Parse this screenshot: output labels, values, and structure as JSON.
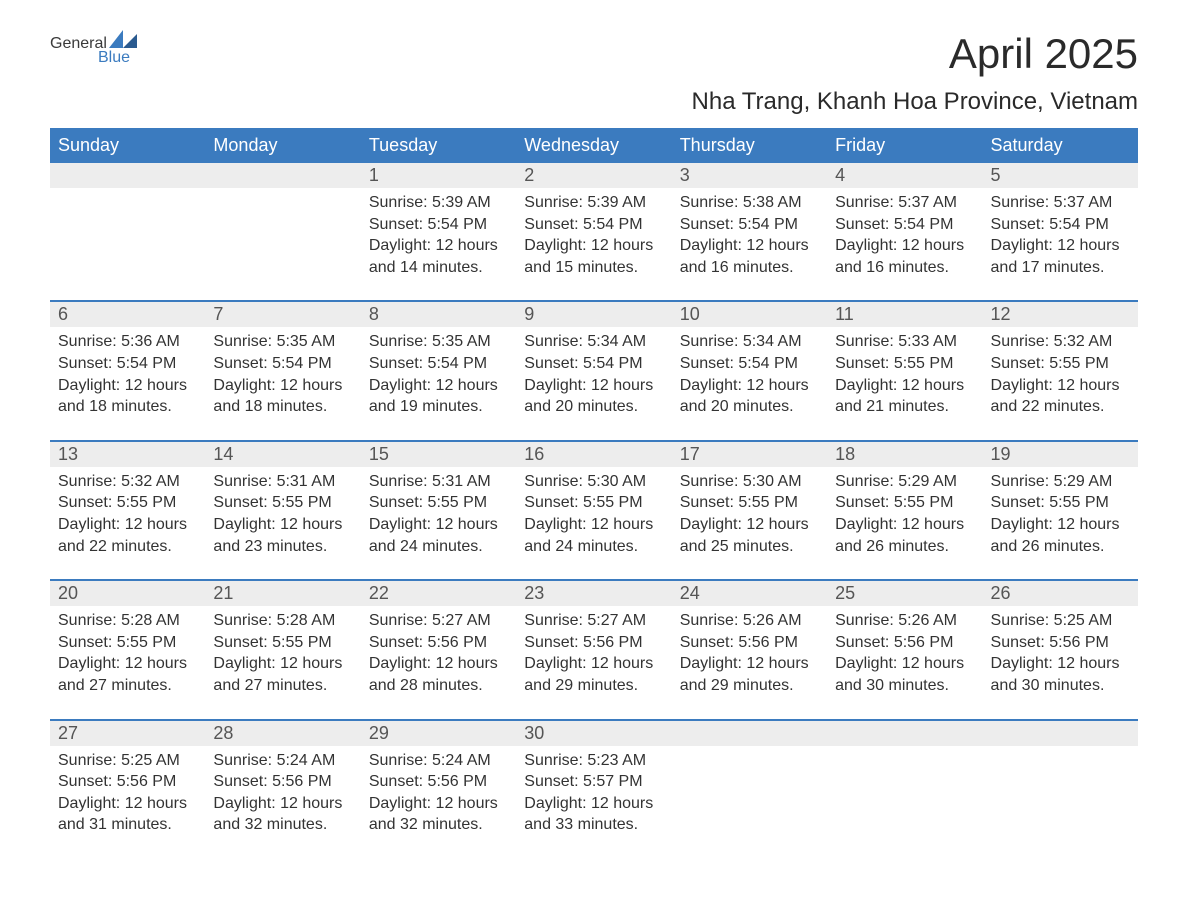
{
  "logo": {
    "text1": "General",
    "text2": "Blue",
    "color1": "#3a3a3a",
    "color2": "#3b7bbf"
  },
  "title": "April 2025",
  "subtitle": "Nha Trang, Khanh Hoa Province, Vietnam",
  "colors": {
    "header_bg": "#3b7bbf",
    "header_text": "#ffffff",
    "date_bg": "#ededed",
    "date_text": "#555555",
    "body_text": "#333333",
    "row_border": "#3b7bbf",
    "background": "#ffffff"
  },
  "typography": {
    "title_fontsize": 42,
    "subtitle_fontsize": 24,
    "dayheader_fontsize": 18,
    "date_fontsize": 18,
    "content_fontsize": 16
  },
  "day_headers": [
    "Sunday",
    "Monday",
    "Tuesday",
    "Wednesday",
    "Thursday",
    "Friday",
    "Saturday"
  ],
  "weeks": [
    [
      {
        "date": "",
        "sunrise": "",
        "sunset": "",
        "daylight": ""
      },
      {
        "date": "",
        "sunrise": "",
        "sunset": "",
        "daylight": ""
      },
      {
        "date": "1",
        "sunrise": "Sunrise: 5:39 AM",
        "sunset": "Sunset: 5:54 PM",
        "daylight": "Daylight: 12 hours and 14 minutes."
      },
      {
        "date": "2",
        "sunrise": "Sunrise: 5:39 AM",
        "sunset": "Sunset: 5:54 PM",
        "daylight": "Daylight: 12 hours and 15 minutes."
      },
      {
        "date": "3",
        "sunrise": "Sunrise: 5:38 AM",
        "sunset": "Sunset: 5:54 PM",
        "daylight": "Daylight: 12 hours and 16 minutes."
      },
      {
        "date": "4",
        "sunrise": "Sunrise: 5:37 AM",
        "sunset": "Sunset: 5:54 PM",
        "daylight": "Daylight: 12 hours and 16 minutes."
      },
      {
        "date": "5",
        "sunrise": "Sunrise: 5:37 AM",
        "sunset": "Sunset: 5:54 PM",
        "daylight": "Daylight: 12 hours and 17 minutes."
      }
    ],
    [
      {
        "date": "6",
        "sunrise": "Sunrise: 5:36 AM",
        "sunset": "Sunset: 5:54 PM",
        "daylight": "Daylight: 12 hours and 18 minutes."
      },
      {
        "date": "7",
        "sunrise": "Sunrise: 5:35 AM",
        "sunset": "Sunset: 5:54 PM",
        "daylight": "Daylight: 12 hours and 18 minutes."
      },
      {
        "date": "8",
        "sunrise": "Sunrise: 5:35 AM",
        "sunset": "Sunset: 5:54 PM",
        "daylight": "Daylight: 12 hours and 19 minutes."
      },
      {
        "date": "9",
        "sunrise": "Sunrise: 5:34 AM",
        "sunset": "Sunset: 5:54 PM",
        "daylight": "Daylight: 12 hours and 20 minutes."
      },
      {
        "date": "10",
        "sunrise": "Sunrise: 5:34 AM",
        "sunset": "Sunset: 5:54 PM",
        "daylight": "Daylight: 12 hours and 20 minutes."
      },
      {
        "date": "11",
        "sunrise": "Sunrise: 5:33 AM",
        "sunset": "Sunset: 5:55 PM",
        "daylight": "Daylight: 12 hours and 21 minutes."
      },
      {
        "date": "12",
        "sunrise": "Sunrise: 5:32 AM",
        "sunset": "Sunset: 5:55 PM",
        "daylight": "Daylight: 12 hours and 22 minutes."
      }
    ],
    [
      {
        "date": "13",
        "sunrise": "Sunrise: 5:32 AM",
        "sunset": "Sunset: 5:55 PM",
        "daylight": "Daylight: 12 hours and 22 minutes."
      },
      {
        "date": "14",
        "sunrise": "Sunrise: 5:31 AM",
        "sunset": "Sunset: 5:55 PM",
        "daylight": "Daylight: 12 hours and 23 minutes."
      },
      {
        "date": "15",
        "sunrise": "Sunrise: 5:31 AM",
        "sunset": "Sunset: 5:55 PM",
        "daylight": "Daylight: 12 hours and 24 minutes."
      },
      {
        "date": "16",
        "sunrise": "Sunrise: 5:30 AM",
        "sunset": "Sunset: 5:55 PM",
        "daylight": "Daylight: 12 hours and 24 minutes."
      },
      {
        "date": "17",
        "sunrise": "Sunrise: 5:30 AM",
        "sunset": "Sunset: 5:55 PM",
        "daylight": "Daylight: 12 hours and 25 minutes."
      },
      {
        "date": "18",
        "sunrise": "Sunrise: 5:29 AM",
        "sunset": "Sunset: 5:55 PM",
        "daylight": "Daylight: 12 hours and 26 minutes."
      },
      {
        "date": "19",
        "sunrise": "Sunrise: 5:29 AM",
        "sunset": "Sunset: 5:55 PM",
        "daylight": "Daylight: 12 hours and 26 minutes."
      }
    ],
    [
      {
        "date": "20",
        "sunrise": "Sunrise: 5:28 AM",
        "sunset": "Sunset: 5:55 PM",
        "daylight": "Daylight: 12 hours and 27 minutes."
      },
      {
        "date": "21",
        "sunrise": "Sunrise: 5:28 AM",
        "sunset": "Sunset: 5:55 PM",
        "daylight": "Daylight: 12 hours and 27 minutes."
      },
      {
        "date": "22",
        "sunrise": "Sunrise: 5:27 AM",
        "sunset": "Sunset: 5:56 PM",
        "daylight": "Daylight: 12 hours and 28 minutes."
      },
      {
        "date": "23",
        "sunrise": "Sunrise: 5:27 AM",
        "sunset": "Sunset: 5:56 PM",
        "daylight": "Daylight: 12 hours and 29 minutes."
      },
      {
        "date": "24",
        "sunrise": "Sunrise: 5:26 AM",
        "sunset": "Sunset: 5:56 PM",
        "daylight": "Daylight: 12 hours and 29 minutes."
      },
      {
        "date": "25",
        "sunrise": "Sunrise: 5:26 AM",
        "sunset": "Sunset: 5:56 PM",
        "daylight": "Daylight: 12 hours and 30 minutes."
      },
      {
        "date": "26",
        "sunrise": "Sunrise: 5:25 AM",
        "sunset": "Sunset: 5:56 PM",
        "daylight": "Daylight: 12 hours and 30 minutes."
      }
    ],
    [
      {
        "date": "27",
        "sunrise": "Sunrise: 5:25 AM",
        "sunset": "Sunset: 5:56 PM",
        "daylight": "Daylight: 12 hours and 31 minutes."
      },
      {
        "date": "28",
        "sunrise": "Sunrise: 5:24 AM",
        "sunset": "Sunset: 5:56 PM",
        "daylight": "Daylight: 12 hours and 32 minutes."
      },
      {
        "date": "29",
        "sunrise": "Sunrise: 5:24 AM",
        "sunset": "Sunset: 5:56 PM",
        "daylight": "Daylight: 12 hours and 32 minutes."
      },
      {
        "date": "30",
        "sunrise": "Sunrise: 5:23 AM",
        "sunset": "Sunset: 5:57 PM",
        "daylight": "Daylight: 12 hours and 33 minutes."
      },
      {
        "date": "",
        "sunrise": "",
        "sunset": "",
        "daylight": ""
      },
      {
        "date": "",
        "sunrise": "",
        "sunset": "",
        "daylight": ""
      },
      {
        "date": "",
        "sunrise": "",
        "sunset": "",
        "daylight": ""
      }
    ]
  ]
}
